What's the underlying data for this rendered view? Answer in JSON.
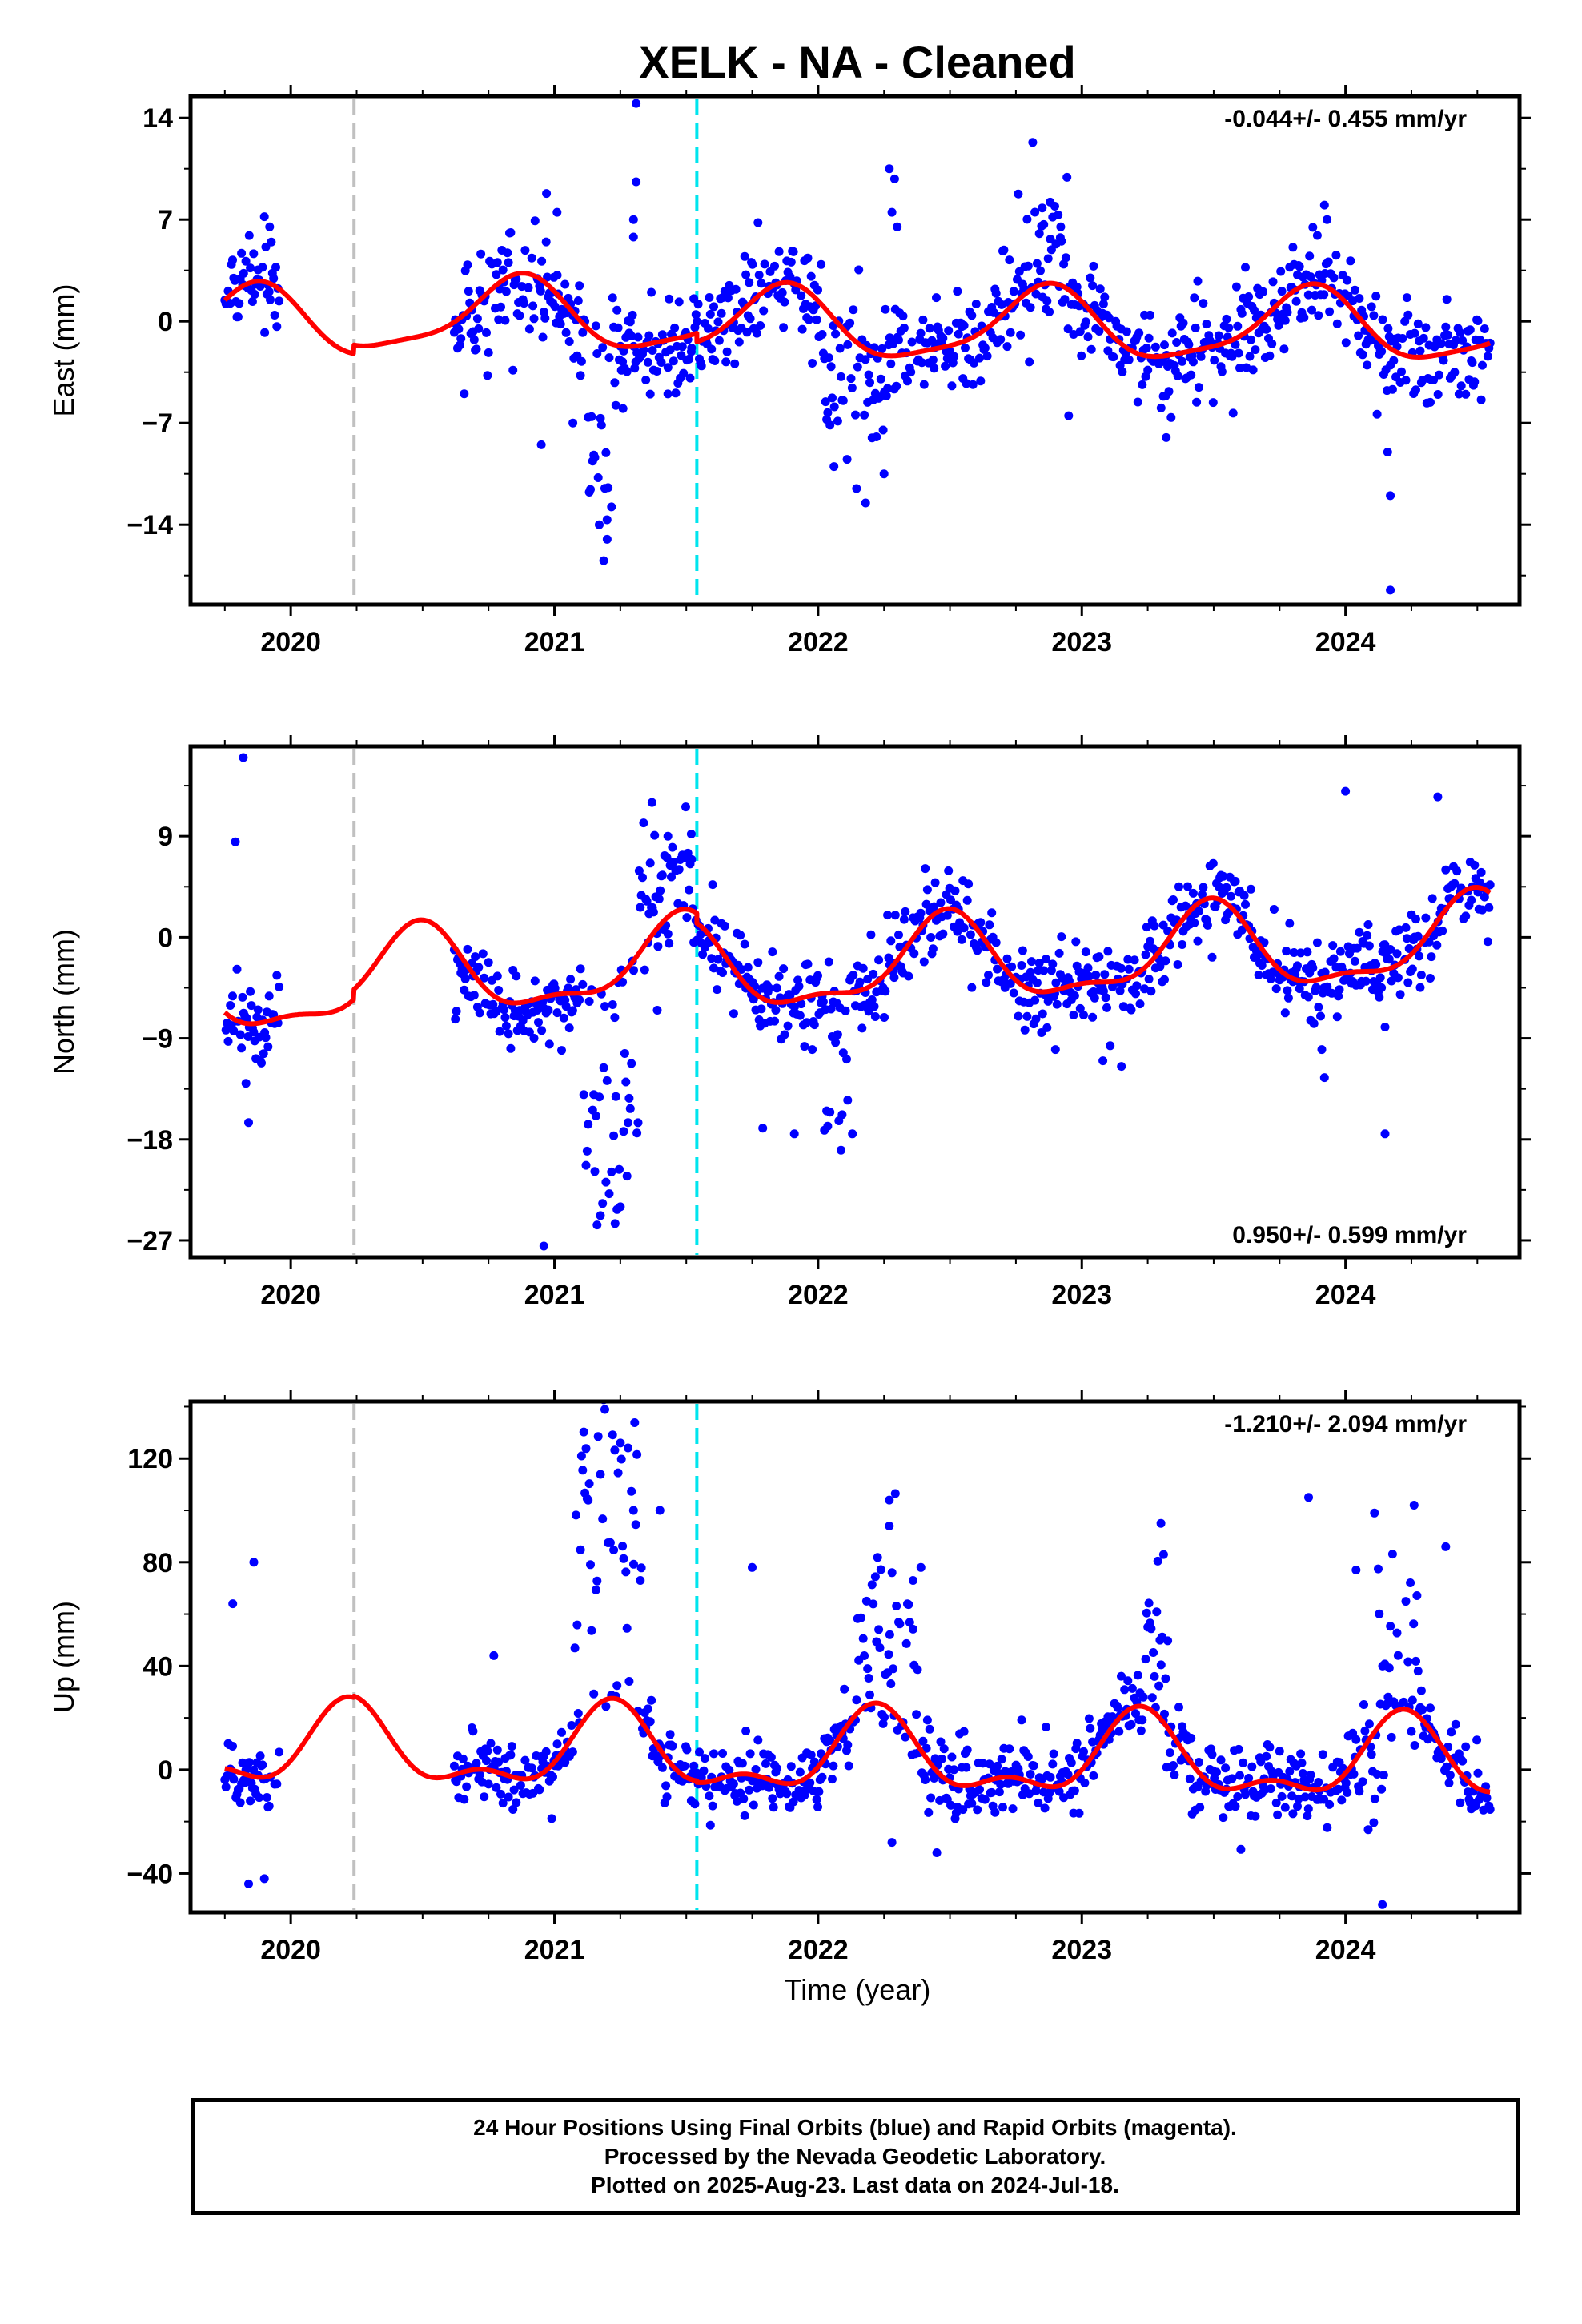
{
  "title": "XELK  - NA - Cleaned",
  "xlabel": "Time (year)",
  "colors": {
    "data": "#0000ff",
    "model": "#ff0000",
    "break_gray": "#c0c0c0",
    "break_cyan": "#00e5ee"
  },
  "footer": [
    "24 Hour Positions Using Final Orbits (blue) and Rapid Orbits (magenta).",
    "Processed by the Nevada Geodetic Laboratory.",
    "Plotted on 2025-Aug-23. Last data on 2024-Jul-18."
  ],
  "chart_data": [
    {
      "type": "scatter",
      "name": "east",
      "ylabel": "East (mm)",
      "rate": "-0.044+/- 0.455 mm/yr",
      "rate_position": "top-right",
      "xlim": [
        2019.62,
        2024.66
      ],
      "ylim": [
        -19.5,
        15.5
      ],
      "yticks": [
        14,
        7,
        0,
        -7,
        -14
      ],
      "xticks": [
        2020,
        2021,
        2022,
        2023,
        2024
      ],
      "breaks": [
        {
          "x": 2020.24,
          "kind": "gray"
        },
        {
          "x": 2021.54,
          "kind": "cyan"
        }
      ],
      "x_ranges": [
        [
          2019.75,
          2019.96
        ],
        [
          2020.62,
          2021.52
        ],
        [
          2021.52,
          2024.55
        ]
      ],
      "model": {
        "offset": -0.3,
        "trend": -0.044,
        "seasonal": [
          {
            "kind": "cos",
            "amp": 2.4,
            "period": 1,
            "phase": 2019.86
          },
          {
            "kind": "cos",
            "amp": 0.6,
            "period": 0.5,
            "phase": 2019.9
          }
        ]
      },
      "noise": 1.7,
      "excursions": [
        {
          "from": 2021.12,
          "to": 2021.22,
          "shift": -8.5,
          "spread": 3.5
        },
        {
          "from": 2022.0,
          "to": 2022.28,
          "shift": -3.5,
          "spread": 2.5
        },
        {
          "from": 2022.7,
          "to": 2022.95,
          "shift": 2.5,
          "spread": 2.5
        }
      ],
      "outliers": [
        [
          2019.9,
          7.2
        ],
        [
          2019.92,
          6.5
        ],
        [
          2020.97,
          8.8
        ],
        [
          2021.01,
          7.5
        ],
        [
          2021.31,
          15.0
        ],
        [
          2021.31,
          9.6
        ],
        [
          2021.3,
          7.0
        ],
        [
          2021.3,
          5.8
        ],
        [
          2021.2,
          -15.0
        ],
        [
          2021.17,
          -14.0
        ],
        [
          2022.27,
          10.5
        ],
        [
          2022.29,
          9.8
        ],
        [
          2022.28,
          7.5
        ],
        [
          2022.3,
          6.5
        ],
        [
          2022.18,
          -12.5
        ],
        [
          2022.88,
          8.2
        ],
        [
          2022.85,
          7.8
        ],
        [
          2022.92,
          6.5
        ],
        [
          2023.93,
          7.0
        ],
        [
          2023.92,
          8.0
        ],
        [
          2024.17,
          -18.5
        ],
        [
          2024.17,
          -12.0
        ],
        [
          2024.16,
          -9.0
        ],
        [
          2020.95,
          -8.5
        ],
        [
          2021.07,
          -7.0
        ],
        [
          2021.26,
          -6.0
        ],
        [
          2021.43,
          -5.0
        ],
        [
          2022.06,
          -10.0
        ],
        [
          2022.11,
          -9.5
        ],
        [
          2022.25,
          -10.5
        ],
        [
          2022.95,
          -6.5
        ],
        [
          2023.32,
          -8.0
        ]
      ]
    },
    {
      "type": "scatter",
      "name": "north",
      "ylabel": "North (mm)",
      "rate": "0.950+/- 0.599 mm/yr",
      "rate_position": "bottom-right",
      "xlim": [
        2019.62,
        2024.66
      ],
      "ylim": [
        -28.5,
        17
      ],
      "yticks": [
        9,
        0,
        -9,
        -18,
        -27
      ],
      "xticks": [
        2020,
        2021,
        2022,
        2023,
        2024
      ],
      "breaks": [
        {
          "x": 2020.24,
          "kind": "gray"
        },
        {
          "x": 2021.54,
          "kind": "cyan"
        }
      ],
      "x_ranges": [
        [
          2019.75,
          2019.96
        ],
        [
          2020.62,
          2021.52
        ],
        [
          2021.52,
          2024.55
        ]
      ],
      "model": {
        "offset": -2.8,
        "trend": 0.95,
        "seasonal": [
          {
            "kind": "cos",
            "amp": 3.6,
            "period": 1,
            "phase": 2020.48
          },
          {
            "kind": "cos",
            "amp": 1.3,
            "period": 0.5,
            "phase": 2020.5
          }
        ]
      },
      "noise": 1.8,
      "excursions": [
        {
          "from": 2021.1,
          "to": 2021.32,
          "shift": -13.0,
          "spread": 4.0
        },
        {
          "from": 2021.32,
          "to": 2021.52,
          "shift": 5.0,
          "spread": 2.0
        },
        {
          "from": 2022.02,
          "to": 2022.12,
          "shift": -8.0,
          "spread": 3.0
        }
      ],
      "outliers": [
        [
          2019.82,
          16.0
        ],
        [
          2019.79,
          8.5
        ],
        [
          2019.84,
          -16.5
        ],
        [
          2019.83,
          -13.0
        ],
        [
          2020.96,
          -27.5
        ],
        [
          2021.37,
          12.0
        ],
        [
          2021.43,
          9.0
        ],
        [
          2021.39,
          -6.5
        ],
        [
          2021.79,
          -17.0
        ],
        [
          2021.91,
          -17.5
        ],
        [
          2022.13,
          -17.5
        ],
        [
          2022.9,
          -10.0
        ],
        [
          2023.08,
          -11.0
        ],
        [
          2023.15,
          -11.5
        ],
        [
          2024.0,
          13.0
        ],
        [
          2024.35,
          12.5
        ],
        [
          2024.15,
          -17.5
        ],
        [
          2024.15,
          -8.0
        ],
        [
          2023.92,
          -12.5
        ],
        [
          2023.91,
          -10.0
        ],
        [
          2021.25,
          -24.0
        ],
        [
          2021.23,
          -25.5
        ]
      ]
    },
    {
      "type": "scatter",
      "name": "up",
      "ylabel": "Up (mm)",
      "rate": "-1.210+/- 2.094 mm/yr",
      "rate_position": "top-right",
      "xlim": [
        2019.62,
        2024.66
      ],
      "ylim": [
        -55,
        142
      ],
      "yticks": [
        120,
        80,
        40,
        0,
        -40
      ],
      "xticks": [
        2020,
        2021,
        2022,
        2023,
        2024
      ],
      "breaks": [
        {
          "x": 2020.24,
          "kind": "gray"
        },
        {
          "x": 2021.54,
          "kind": "cyan"
        }
      ],
      "x_ranges": [
        [
          2019.75,
          2019.96
        ],
        [
          2020.62,
          2021.52
        ],
        [
          2021.52,
          2024.55
        ]
      ],
      "model": {
        "offset": 5.0,
        "trend": -1.21,
        "seasonal": [
          {
            "kind": "cos",
            "amp": 14.0,
            "period": 1,
            "phase": 2020.22
          },
          {
            "kind": "cos",
            "amp": 7.0,
            "period": 0.5,
            "phase": 2020.22
          }
        ]
      },
      "noise": 7.0,
      "excursions": [
        {
          "from": 2021.07,
          "to": 2021.33,
          "shift": 85.0,
          "spread": 25.0
        },
        {
          "from": 2022.15,
          "to": 2022.38,
          "shift": 25.0,
          "spread": 18.0
        },
        {
          "from": 2023.23,
          "to": 2023.33,
          "shift": 25.0,
          "spread": 15.0
        },
        {
          "from": 2024.12,
          "to": 2024.28,
          "shift": 25.0,
          "spread": 20.0
        },
        {
          "from": 2024.08,
          "to": 2024.14,
          "shift": -25.0,
          "spread": 12.0
        }
      ],
      "outliers": [
        [
          2019.86,
          80.0
        ],
        [
          2019.78,
          64.0
        ],
        [
          2019.9,
          -42.0
        ],
        [
          2019.84,
          -44.0
        ],
        [
          2020.77,
          44.0
        ],
        [
          2021.3,
          100.0
        ],
        [
          2021.4,
          100.0
        ],
        [
          2021.75,
          78.0
        ],
        [
          2022.27,
          104.0
        ],
        [
          2022.27,
          94.0
        ],
        [
          2022.39,
          78.0
        ],
        [
          2022.36,
          73.0
        ],
        [
          2023.3,
          95.0
        ],
        [
          2023.31,
          83.0
        ],
        [
          2023.86,
          105.0
        ],
        [
          2024.11,
          99.0
        ],
        [
          2024.26,
          102.0
        ],
        [
          2024.38,
          86.0
        ],
        [
          2024.04,
          77.0
        ],
        [
          2024.14,
          -52.0
        ],
        [
          2022.28,
          -28.0
        ],
        [
          2022.45,
          -32.0
        ]
      ]
    }
  ]
}
